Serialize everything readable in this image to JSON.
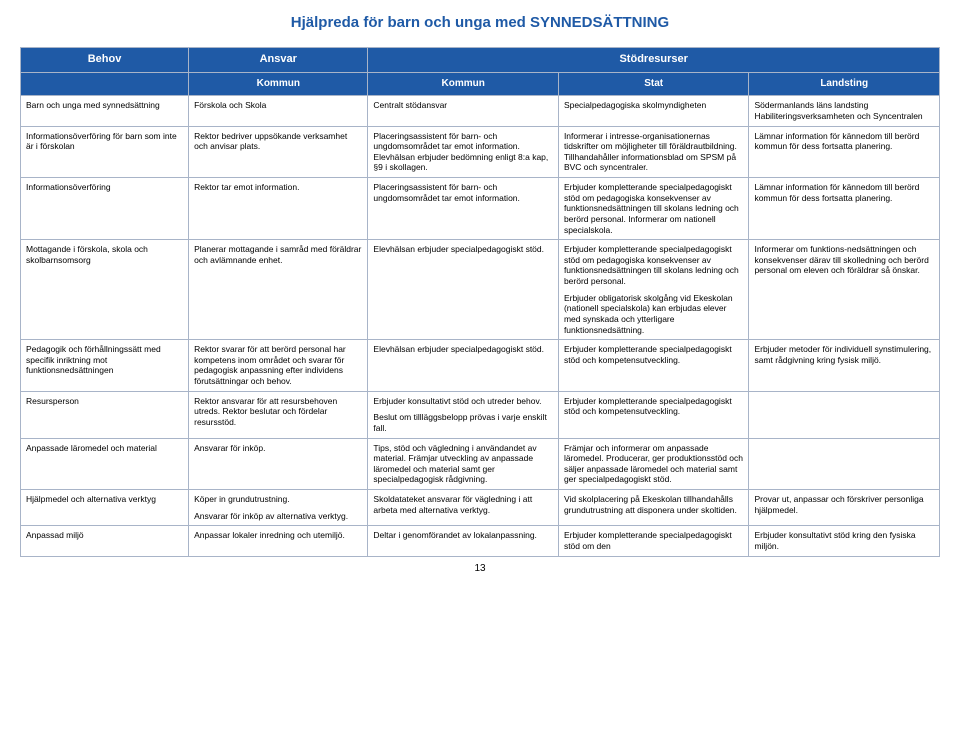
{
  "title_color": "#1f5aa6",
  "header_bg": "#1f5aa6",
  "header_fg": "#ffffff",
  "border_color": "#a8b4c8",
  "title": "Hjälpreda för barn och unga med SYNNEDSÄTTNING",
  "header": {
    "c1": "Behov",
    "c2": "Ansvar",
    "c3_5": "Stödresurser",
    "sub_c2": "Kommun",
    "sub_c3": "Kommun",
    "sub_c4": "Stat",
    "sub_c5": "Landsting"
  },
  "rows": [
    {
      "c1": "Barn och unga med synnedsättning",
      "c2": "Förskola och Skola",
      "c3": "Centralt stödansvar",
      "c4": "Specialpedagogiska skolmyndigheten",
      "c5": "Södermanlands läns landsting Habiliteringsverksamheten och Syncentralen"
    },
    {
      "c1": "Informationsöverföring för barn som inte är i förskolan",
      "c2": "Rektor bedriver uppsökande verksamhet och anvisar plats.",
      "c3": "Placeringsassistent för barn- och ungdomsområdet tar emot information. Elevhälsan erbjuder bedömning enligt 8:a kap, §9 i skollagen.",
      "c4": "Informerar i intresse-organisationernas tidskrifter om möjligheter till föräldrautbildning. Tillhandahåller informationsblad om SPSM på BVC och syncentraler.",
      "c5": "Lämnar information för kännedom till berörd kommun för dess fortsatta planering."
    },
    {
      "c1": "Informationsöverföring",
      "c2": "Rektor tar emot information.",
      "c3": "Placeringsassistent för barn- och ungdomsområdet tar emot information.",
      "c4": "Erbjuder kompletterande specialpedagogiskt stöd om pedagogiska konsekvenser av funktionsnedsättningen till skolans ledning och berörd personal. Informerar om nationell specialskola.",
      "c5": "Lämnar information för kännedom till berörd kommun för dess fortsatta planering."
    },
    {
      "c1": "Mottagande i förskola, skola och skolbarnsomsorg",
      "c2": "Planerar mottagande i samråd med föräldrar och avlämnande enhet.",
      "c3": "Elevhälsan erbjuder specialpedagogiskt stöd.",
      "c4": "Erbjuder kompletterande specialpedagogiskt stöd om pedagogiska konsekvenser av funktionsnedsättningen till skolans ledning och berörd personal.\nErbjuder obligatorisk skolgång vid Ekeskolan (nationell specialskola) kan erbjudas elever med synskada och ytterligare funktionsnedsättning.",
      "c5": "Informerar om funktions-nedsättningen och konsekvenser därav till skolledning och berörd personal om eleven och föräldrar så önskar."
    },
    {
      "c1": "Pedagogik och förhållningssätt med specifik inriktning mot funktionsnedsättningen",
      "c2": "Rektor svarar för att berörd personal har kompetens inom området och svarar för pedagogisk anpassning efter individens förutsättningar och behov.",
      "c3": "Elevhälsan erbjuder specialpedagogiskt stöd.",
      "c4": "Erbjuder kompletterande specialpedagogiskt stöd och kompetensutveckling.",
      "c5": "Erbjuder metoder för individuell synstimulering, samt rådgivning kring fysisk miljö."
    },
    {
      "c1": "Resursperson",
      "c2": "Rektor ansvarar för att resursbehoven utreds. Rektor beslutar och fördelar resursstöd.",
      "c3": "Erbjuder konsultativt stöd och utreder behov.\nBeslut om tillläggsbelopp prövas i varje enskilt fall.",
      "c4": "Erbjuder kompletterande specialpedagogiskt stöd och kompetensutveckling.",
      "c5": ""
    },
    {
      "c1": "Anpassade läromedel och material",
      "c2": "Ansvarar för inköp.",
      "c3": "Tips, stöd och vägledning i användandet av material. Främjar utveckling av anpassade läromedel och material samt ger specialpedagogisk rådgivning.",
      "c4": "Främjar och informerar om anpassade läromedel. Producerar, ger produktionsstöd och säljer anpassade läromedel och material samt ger specialpedagogiskt stöd.",
      "c5": ""
    },
    {
      "c1": "Hjälpmedel och alternativa verktyg",
      "c2": "Köper in grundutrustning.\nAnsvarar för inköp av alternativa verktyg.",
      "c3": "Skoldatateket ansvarar för vägledning i att arbeta med alternativa verktyg.",
      "c4": "Vid skolplacering på Ekeskolan tillhandahålls grundutrustning att disponera under skoltiden.",
      "c5": "Provar ut, anpassar och förskriver personliga hjälpmedel."
    },
    {
      "c1": "Anpassad miljö",
      "c2": "Anpassar lokaler inredning och utemiljö.",
      "c3": "Deltar i genomförandet av lokalanpassning.",
      "c4": "Erbjuder kompletterande specialpedagogiskt stöd om den",
      "c5": "Erbjuder konsultativt stöd kring den fysiska miljön."
    }
  ],
  "page_number": "13"
}
